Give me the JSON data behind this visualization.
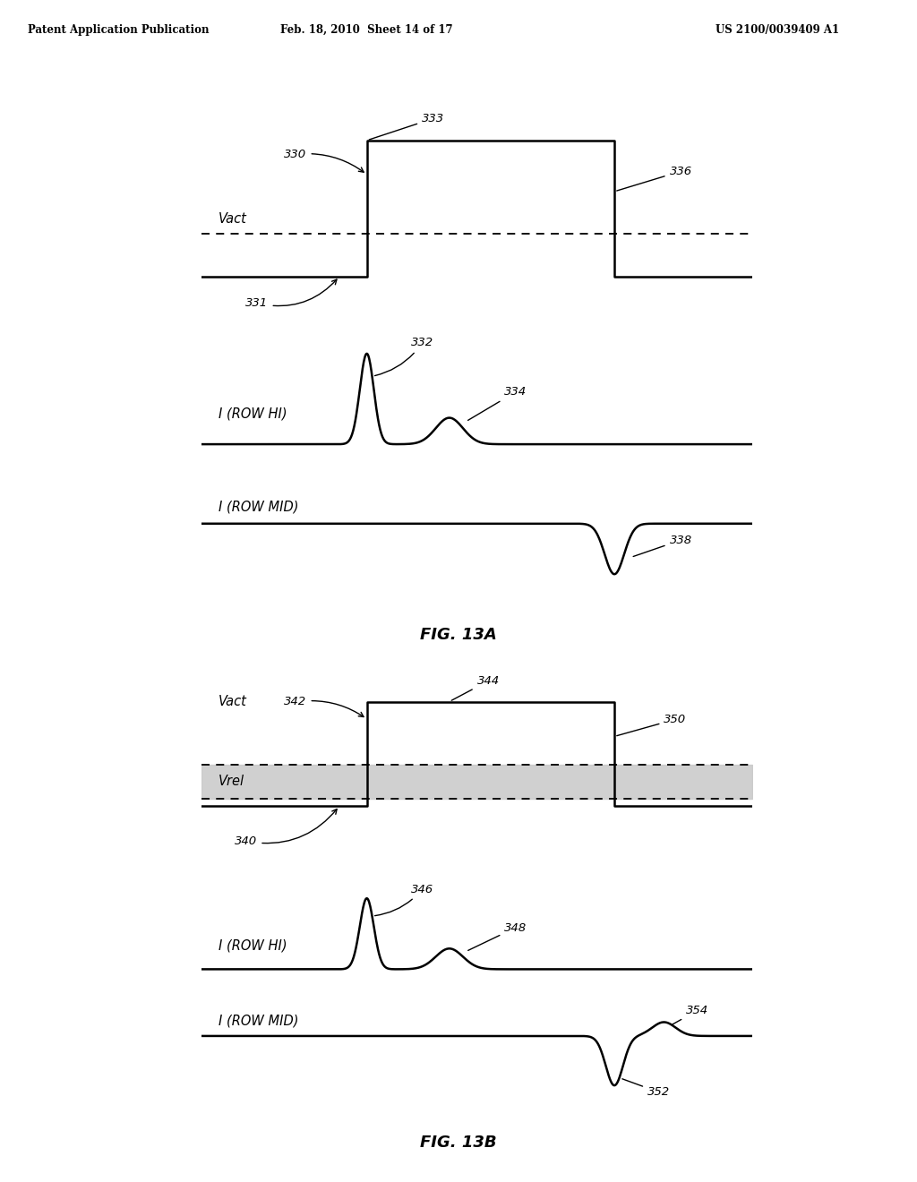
{
  "bg_color": "#ffffff",
  "header_left": "Patent Application Publication",
  "header_mid": "Feb. 18, 2010  Sheet 14 of 17",
  "header_right": "US 2100/0039409 A1",
  "fig13a_label": "FIG. 13A",
  "fig13b_label": "FIG. 13B"
}
